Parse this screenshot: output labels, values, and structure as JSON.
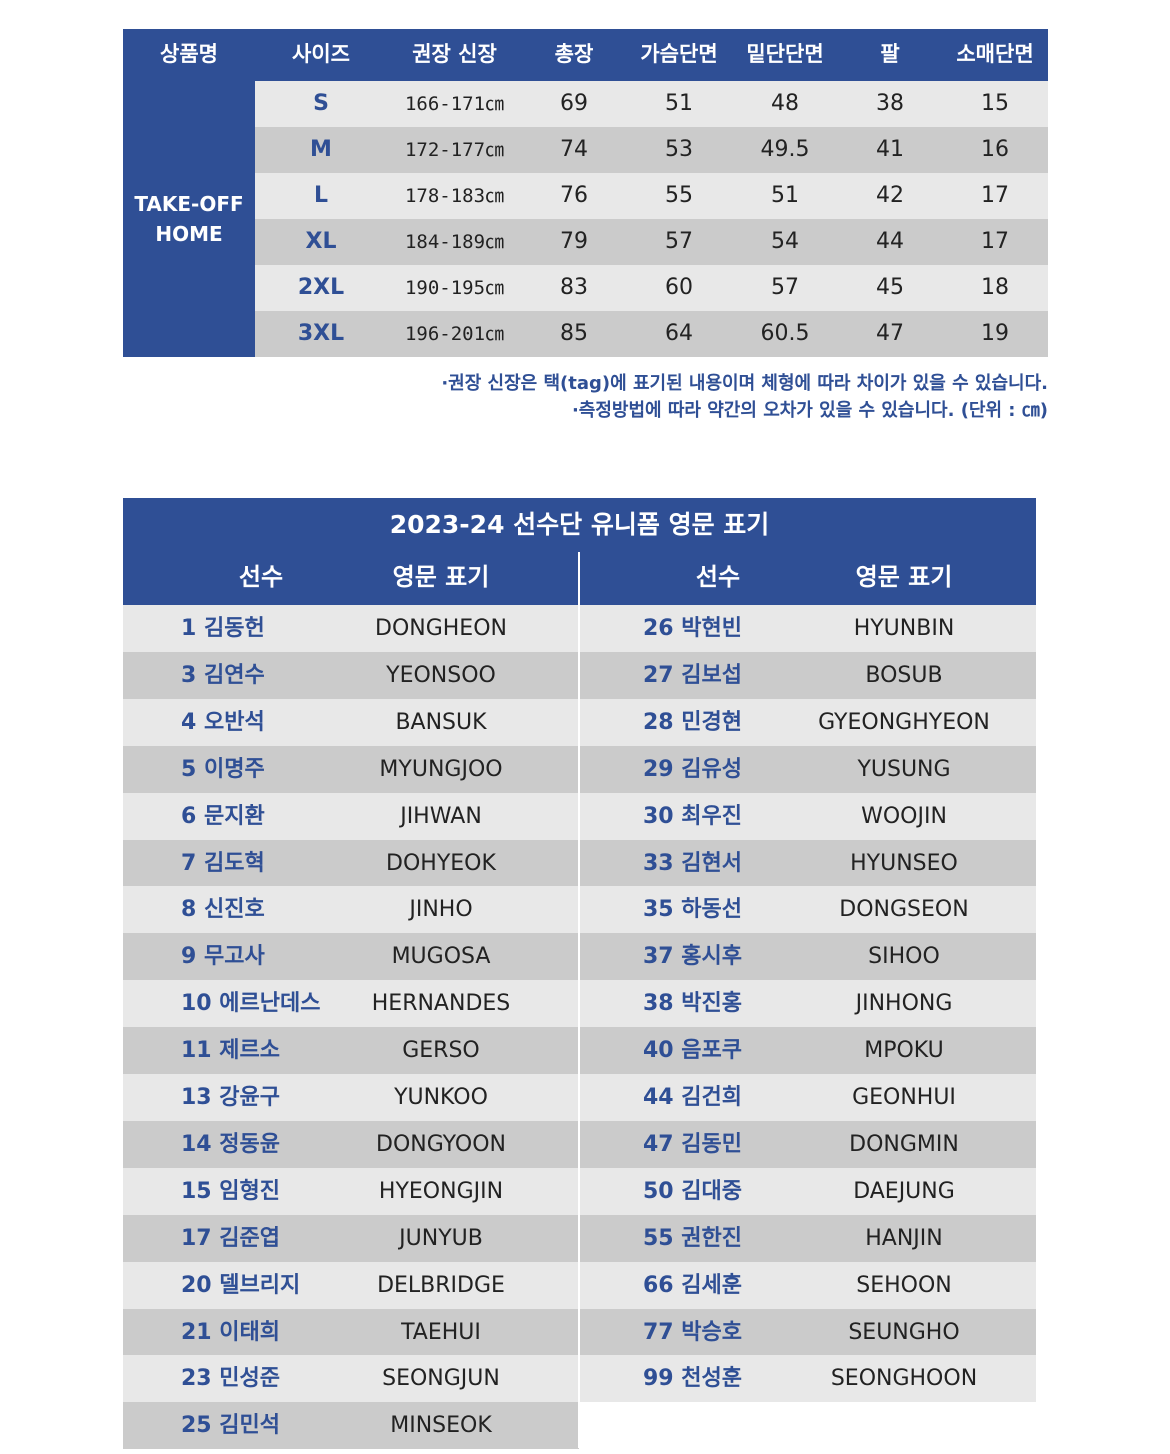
{
  "size_table": {
    "headers": [
      "상품명",
      "사이즈",
      "권장 신장",
      "총장",
      "가슴단면",
      "밑단단면",
      "팔",
      "소매단면"
    ],
    "product_name_line1": "TAKE-OFF",
    "product_name_line2": "HOME",
    "rows": [
      {
        "size": "S",
        "height": "166-171㎝",
        "length": "69",
        "chest": "51",
        "hem": "48",
        "arm": "38",
        "sleeve": "15"
      },
      {
        "size": "M",
        "height": "172-177㎝",
        "length": "74",
        "chest": "53",
        "hem": "49.5",
        "arm": "41",
        "sleeve": "16"
      },
      {
        "size": "L",
        "height": "178-183㎝",
        "length": "76",
        "chest": "55",
        "hem": "51",
        "arm": "42",
        "sleeve": "17"
      },
      {
        "size": "XL",
        "height": "184-189㎝",
        "length": "79",
        "chest": "57",
        "hem": "54",
        "arm": "44",
        "sleeve": "17"
      },
      {
        "size": "2XL",
        "height": "190-195㎝",
        "length": "83",
        "chest": "60",
        "hem": "57",
        "arm": "45",
        "sleeve": "18"
      },
      {
        "size": "3XL",
        "height": "196-201㎝",
        "length": "85",
        "chest": "64",
        "hem": "60.5",
        "arm": "47",
        "sleeve": "19"
      }
    ],
    "colors": {
      "header": "#2f4f95",
      "row_light": "#e8e8e8",
      "row_dark": "#cbcbcb"
    }
  },
  "notes": {
    "line1": "·권장 신장은 택(tag)에 표기된 내용이며 체형에 따라 차이가 있을 수 있습니다.",
    "line2": "·측정방법에 따라 약간의 오차가 있을 수 있습니다. (단위 : ㎝)"
  },
  "player_table": {
    "title": "2023-24 선수단 유니폼 영문 표기",
    "col_player": "선수",
    "col_english": "영문 표기",
    "left": [
      {
        "player": "1 김동헌",
        "english": "DONGHEON"
      },
      {
        "player": "3 김연수",
        "english": "YEONSOO"
      },
      {
        "player": "4 오반석",
        "english": "BANSUK"
      },
      {
        "player": "5 이명주",
        "english": "MYUNGJOO"
      },
      {
        "player": "6 문지환",
        "english": "JIHWAN"
      },
      {
        "player": "7 김도혁",
        "english": "DOHYEOK"
      },
      {
        "player": "8 신진호",
        "english": "JINHO"
      },
      {
        "player": "9 무고사",
        "english": "MUGOSA"
      },
      {
        "player": "10 에르난데스",
        "english": "HERNANDES"
      },
      {
        "player": "11 제르소",
        "english": "GERSO"
      },
      {
        "player": "13 강윤구",
        "english": "YUNKOO"
      },
      {
        "player": "14 정동윤",
        "english": "DONGYOON"
      },
      {
        "player": "15 임형진",
        "english": "HYEONGJIN"
      },
      {
        "player": "17 김준엽",
        "english": "JUNYUB"
      },
      {
        "player": "20 델브리지",
        "english": "DELBRIDGE"
      },
      {
        "player": "21 이태희",
        "english": "TAEHUI"
      },
      {
        "player": "23 민성준",
        "english": "SEONGJUN"
      },
      {
        "player": "25 김민석",
        "english": "MINSEOK"
      }
    ],
    "right": [
      {
        "player": "26 박현빈",
        "english": "HYUNBIN"
      },
      {
        "player": "27 김보섭",
        "english": "BOSUB"
      },
      {
        "player": "28 민경현",
        "english": "GYEONGHYEON"
      },
      {
        "player": "29 김유성",
        "english": "YUSUNG"
      },
      {
        "player": "30 최우진",
        "english": "WOOJIN"
      },
      {
        "player": "33 김현서",
        "english": "HYUNSEO"
      },
      {
        "player": "35 하동선",
        "english": "DONGSEON"
      },
      {
        "player": "37 홍시후",
        "english": "SIHOO"
      },
      {
        "player": "38 박진홍",
        "english": "JINHONG"
      },
      {
        "player": "40 음포쿠",
        "english": "MPOKU"
      },
      {
        "player": "44 김건희",
        "english": "GEONHUI"
      },
      {
        "player": "47 김동민",
        "english": "DONGMIN"
      },
      {
        "player": "50 김대중",
        "english": "DAEJUNG"
      },
      {
        "player": "55 권한진",
        "english": "HANJIN"
      },
      {
        "player": "66 김세훈",
        "english": "SEHOON"
      },
      {
        "player": "77 박승호",
        "english": "SEUNGHO"
      },
      {
        "player": "99 천성훈",
        "english": "SEONGHOON"
      }
    ]
  }
}
